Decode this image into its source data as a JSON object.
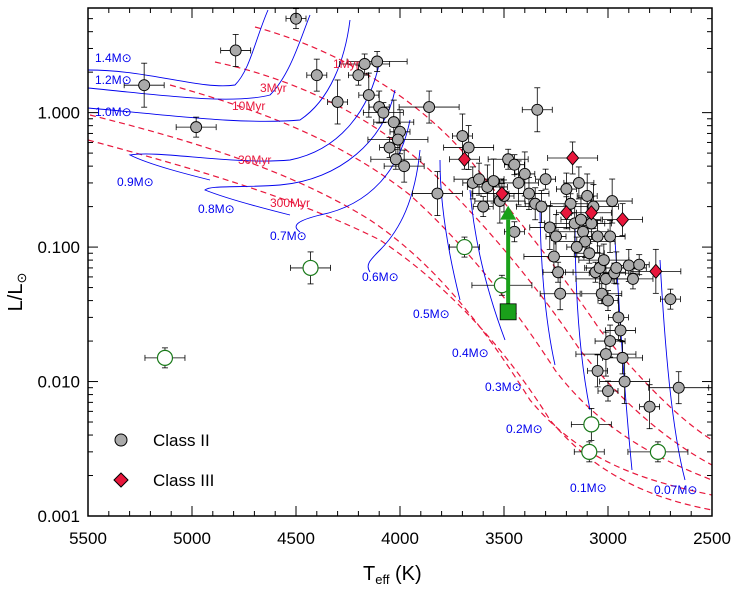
{
  "chart_data": {
    "type": "scatter",
    "xlabel_main": "T",
    "xlabel_sub": "eff",
    "xlabel_unit": " (K)",
    "ylabel_main": "L/L",
    "ylabel_sub": "⊙",
    "xlim": [
      5500,
      2500
    ],
    "ylim": [
      0.001,
      6
    ],
    "yscale": "log",
    "x_ticks": [
      "5500",
      "5000",
      "4500",
      "4000",
      "3500",
      "3000",
      "2500"
    ],
    "y_ticks": [
      "0.001",
      "0.010",
      "0.100",
      "1.000"
    ],
    "legend": [
      {
        "label": "Class II",
        "marker": "circle",
        "color": "#aaaaaa"
      },
      {
        "label": "Class III",
        "marker": "diamond",
        "color": "#e8173c"
      }
    ],
    "legend_position": "bottom-left",
    "colors": {
      "isochrone": "#e8173c",
      "mass_track": "#0000ee",
      "open_marker": "#1a7a1a",
      "arrow": "#1aa01a",
      "filled_grey": "#aaaaaa",
      "class3": "#e8173c"
    },
    "isochrone_labels": [
      "1Myr",
      "3Myr",
      "10Myr",
      "30Myr",
      "300Myr"
    ],
    "mass_labels": [
      "1.4M⊙",
      "1.2M⊙",
      "1.0M⊙",
      "0.9M⊙",
      "0.8M⊙",
      "0.7M⊙",
      "0.6M⊙",
      "0.5M⊙",
      "0.4M⊙",
      "0.3M⊙",
      "0.2M⊙",
      "0.1M⊙",
      "0.07M⊙"
    ],
    "class2": [
      [
        4500,
        5.0
      ],
      [
        4790,
        2.9
      ],
      [
        4400,
        1.9
      ],
      [
        5230,
        1.6
      ],
      [
        4980,
        0.78
      ],
      [
        4170,
        2.3
      ],
      [
        4110,
        2.4
      ],
      [
        4150,
        1.35
      ],
      [
        4200,
        1.9
      ],
      [
        4300,
        1.2
      ],
      [
        4100,
        1.1
      ],
      [
        4080,
        1.0
      ],
      [
        4030,
        0.85
      ],
      [
        4000,
        0.72
      ],
      [
        4010,
        0.63
      ],
      [
        4050,
        0.55
      ],
      [
        4020,
        0.45
      ],
      [
        3980,
        0.4
      ],
      [
        3860,
        1.1
      ],
      [
        3820,
        0.25
      ],
      [
        3700,
        0.67
      ],
      [
        3670,
        0.55
      ],
      [
        3650,
        0.3
      ],
      [
        3620,
        0.32
      ],
      [
        3580,
        0.28
      ],
      [
        3550,
        0.31
      ],
      [
        3520,
        0.22
      ],
      [
        3480,
        0.45
      ],
      [
        3450,
        0.41
      ],
      [
        3430,
        0.3
      ],
      [
        3400,
        0.35
      ],
      [
        3380,
        0.25
      ],
      [
        3350,
        0.21
      ],
      [
        3340,
        1.05
      ],
      [
        3320,
        0.2
      ],
      [
        3300,
        0.32
      ],
      [
        3280,
        0.14
      ],
      [
        3260,
        0.085
      ],
      [
        3240,
        0.065
      ],
      [
        3230,
        0.045
      ],
      [
        3200,
        0.27
      ],
      [
        3180,
        0.21
      ],
      [
        3160,
        0.15
      ],
      [
        3140,
        0.3
      ],
      [
        3130,
        0.16
      ],
      [
        3120,
        0.13
      ],
      [
        3110,
        0.11
      ],
      [
        3100,
        0.24
      ],
      [
        3090,
        0.09
      ],
      [
        3080,
        0.15
      ],
      [
        3070,
        0.2
      ],
      [
        3060,
        0.065
      ],
      [
        3050,
        0.12
      ],
      [
        3040,
        0.07
      ],
      [
        3030,
        0.045
      ],
      [
        3020,
        0.08
      ],
      [
        3010,
        0.058
      ],
      [
        3000,
        0.04
      ],
      [
        2990,
        0.12
      ],
      [
        2980,
        0.22
      ],
      [
        2970,
        0.064
      ],
      [
        2960,
        0.07
      ],
      [
        2950,
        0.03
      ],
      [
        2940,
        0.024
      ],
      [
        2930,
        0.015
      ],
      [
        2920,
        0.01
      ],
      [
        2900,
        0.073
      ],
      [
        2880,
        0.058
      ],
      [
        2850,
        0.074
      ],
      [
        2800,
        0.0065
      ],
      [
        2700,
        0.041
      ],
      [
        2660,
        0.009
      ],
      [
        3010,
        0.016
      ],
      [
        3000,
        0.0085
      ],
      [
        2990,
        0.02
      ],
      [
        3050,
        0.012
      ],
      [
        3500,
        0.24
      ],
      [
        3600,
        0.2
      ],
      [
        3450,
        0.13
      ],
      [
        3250,
        0.12
      ],
      [
        3150,
        0.1
      ]
    ],
    "class3": [
      [
        3690,
        0.45
      ],
      [
        3510,
        0.25
      ],
      [
        3170,
        0.46
      ],
      [
        3200,
        0.18
      ],
      [
        3080,
        0.18
      ],
      [
        2930,
        0.16
      ],
      [
        2770,
        0.066
      ]
    ],
    "open_circles": [
      [
        5130,
        0.015
      ],
      [
        4430,
        0.07
      ],
      [
        3690,
        0.1
      ],
      [
        3510,
        0.052
      ],
      [
        3080,
        0.0048
      ],
      [
        3090,
        0.003
      ],
      [
        2760,
        0.003
      ]
    ],
    "filled_square": [
      3480,
      0.033
    ],
    "arrow": {
      "from": [
        3480,
        0.033
      ],
      "to": [
        3480,
        0.19
      ]
    }
  }
}
